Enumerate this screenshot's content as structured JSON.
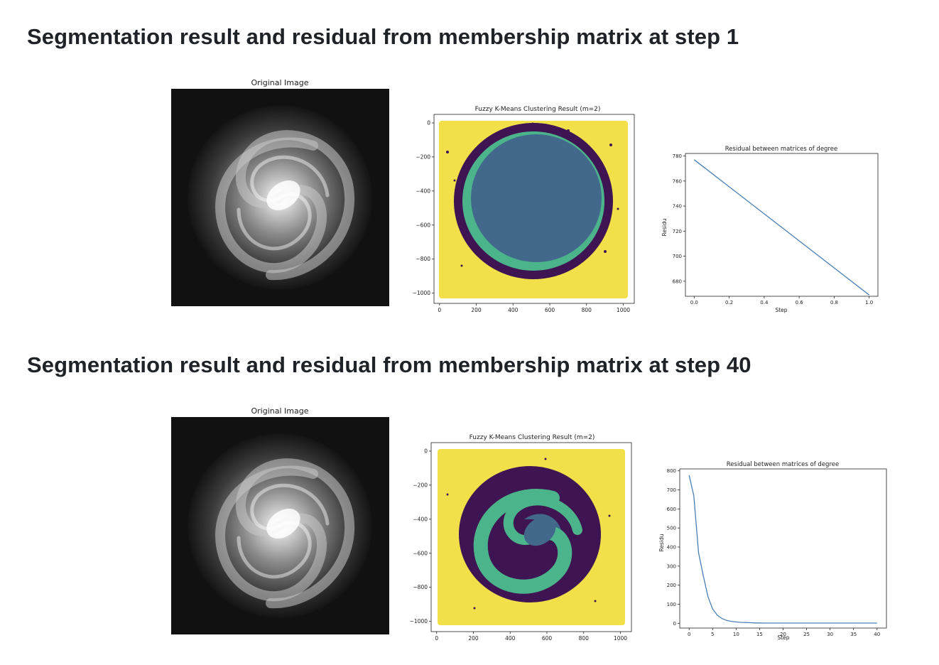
{
  "sections": [
    {
      "heading": "Segmentation result and residual from membership matrix at step 1",
      "original_title": "Original Image",
      "cluster_title": "Fuzzy K-Means Clustering Result (m=2)",
      "residual_title": "Residual between matrices of degree"
    },
    {
      "heading": "Segmentation result and residual from membership matrix at step 40",
      "original_title": "Original Image",
      "cluster_title": "Fuzzy K-Means Clustering Result (m=2)",
      "residual_title": "Residual between matrices of degree"
    }
  ],
  "colors": {
    "yellow": "#f2e04a",
    "green": "#4cb48a",
    "blue": "#42688c",
    "purple": "#3e1452",
    "line": "#4a7fb5"
  },
  "chart_data": [
    {
      "type": "heatmap",
      "title": "Fuzzy K-Means Clustering Result (m=2)",
      "xticks": [
        "0",
        "200",
        "400",
        "600",
        "800",
        "1000"
      ],
      "yticks": [
        "0",
        "−200",
        "−400",
        "−600",
        "−800",
        "−1000"
      ],
      "xlim": [
        -30,
        1060
      ],
      "ylim": [
        -1060,
        50
      ]
    },
    {
      "type": "line",
      "title": "Residual between matrices of degree",
      "xlabel": "Step",
      "ylabel": "Residu",
      "xticks": [
        "0.0",
        "0.2",
        "0.4",
        "0.6",
        "0.8",
        "1.0"
      ],
      "yticks": [
        "680",
        "700",
        "720",
        "740",
        "760",
        "780"
      ],
      "xlim": [
        -0.05,
        1.05
      ],
      "ylim": [
        668,
        782
      ],
      "x": [
        0,
        1
      ],
      "y": [
        777,
        669
      ]
    },
    {
      "type": "heatmap",
      "title": "Fuzzy K-Means Clustering Result (m=2)",
      "xticks": [
        "0",
        "200",
        "400",
        "600",
        "800",
        "1000"
      ],
      "yticks": [
        "0",
        "−200",
        "−400",
        "−600",
        "−800",
        "−1000"
      ],
      "xlim": [
        -30,
        1060
      ],
      "ylim": [
        -1060,
        50
      ]
    },
    {
      "type": "line",
      "title": "Residual between matrices of degree",
      "xlabel": "Step",
      "ylabel": "Residu",
      "xticks": [
        "0",
        "5",
        "10",
        "15",
        "20",
        "25",
        "30",
        "35",
        "40"
      ],
      "yticks": [
        "0",
        "100",
        "200",
        "300",
        "400",
        "500",
        "600",
        "700",
        "800"
      ],
      "xlim": [
        -2,
        42
      ],
      "ylim": [
        -25,
        810
      ],
      "x": [
        0,
        1,
        2,
        3,
        4,
        5,
        6,
        7,
        8,
        9,
        10,
        11,
        12,
        13,
        14,
        15,
        16,
        17,
        18,
        19,
        20,
        21,
        22,
        23,
        24,
        25,
        26,
        27,
        28,
        29,
        30,
        31,
        32,
        33,
        34,
        35,
        36,
        37,
        38,
        39,
        40
      ],
      "y": [
        777,
        669,
        370,
        250,
        140,
        75,
        42,
        25,
        15,
        10,
        7,
        5,
        4,
        3,
        2,
        2,
        1,
        1,
        1,
        1,
        1,
        1,
        1,
        1,
        1,
        1,
        1,
        1,
        1,
        1,
        1,
        1,
        1,
        1,
        1,
        1,
        1,
        1,
        1,
        1,
        1
      ]
    }
  ]
}
